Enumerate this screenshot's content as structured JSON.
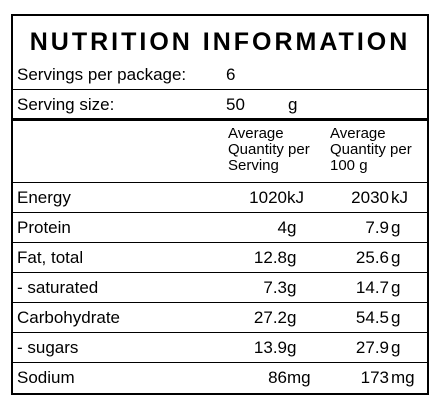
{
  "title": "NUTRITION INFORMATION",
  "servings_per_package": {
    "label": "Servings per package:",
    "value": "6"
  },
  "serving_size": {
    "label": "Serving size:",
    "value": "50",
    "unit": "g"
  },
  "columns": {
    "per_serving": "Average\nQuantity per\nServing",
    "per_100g": "Average\nQuantity per\n100 g"
  },
  "rows": [
    {
      "name": "Energy",
      "per_serving": "1020",
      "per_serving_unit": "kJ",
      "per_100g": "2030",
      "per_100g_unit": "kJ"
    },
    {
      "name": "Protein",
      "per_serving": "4",
      "per_serving_unit": "g",
      "per_100g": "7.9",
      "per_100g_unit": "g"
    },
    {
      "name": "Fat, total",
      "per_serving": "12.8",
      "per_serving_unit": "g",
      "per_100g": "25.6",
      "per_100g_unit": "g"
    },
    {
      "name": "- saturated",
      "per_serving": "7.3",
      "per_serving_unit": "g",
      "per_100g": "14.7",
      "per_100g_unit": "g"
    },
    {
      "name": "Carbohydrate",
      "per_serving": "27.2",
      "per_serving_unit": "g",
      "per_100g": "54.5",
      "per_100g_unit": "g"
    },
    {
      "name": "- sugars",
      "per_serving": "13.9",
      "per_serving_unit": "g",
      "per_100g": "27.9",
      "per_100g_unit": "g"
    },
    {
      "name": "Sodium",
      "per_serving": "86",
      "per_serving_unit": "mg",
      "per_100g": "173",
      "per_100g_unit": "mg"
    }
  ]
}
